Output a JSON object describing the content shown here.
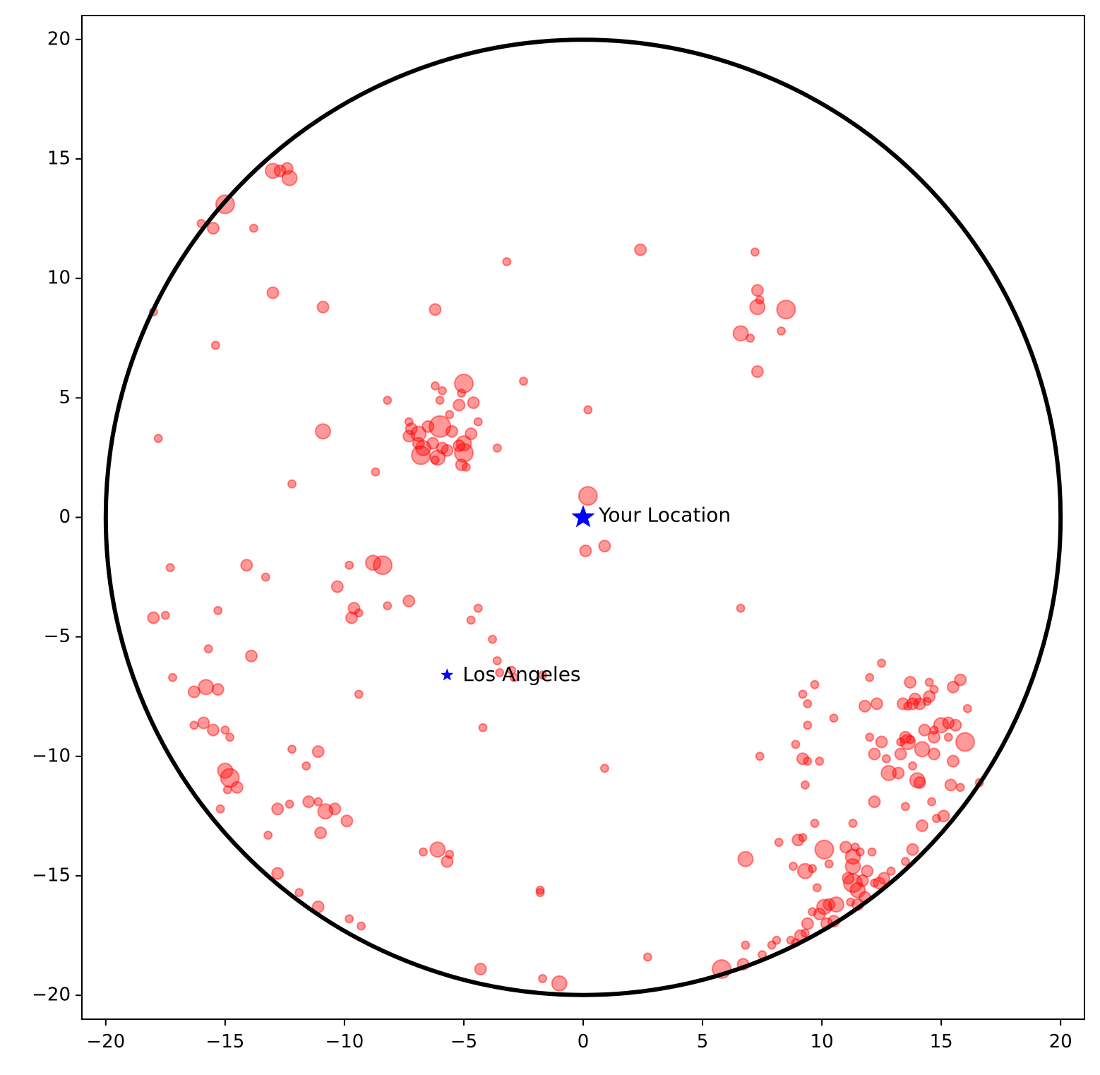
{
  "chart_data": {
    "type": "scatter",
    "title": "",
    "xlabel": "",
    "ylabel": "",
    "xlim": [
      -21,
      21
    ],
    "ylim": [
      -21,
      21
    ],
    "xticks": [
      -20,
      -15,
      -10,
      -5,
      0,
      5,
      10,
      15,
      20
    ],
    "yticks": [
      -20,
      -15,
      -10,
      -5,
      0,
      5,
      10,
      15,
      20
    ],
    "xtick_labels": [
      "−20",
      "−15",
      "−10",
      "−5",
      "0",
      "5",
      "10",
      "15",
      "20"
    ],
    "ytick_labels": [
      "−20",
      "−15",
      "−10",
      "−5",
      "0",
      "5",
      "10",
      "15",
      "20"
    ],
    "grid": false,
    "circle": {
      "center": [
        0,
        0
      ],
      "radius": 20,
      "color": "#000000"
    },
    "points_color": "#ff0000",
    "points_alpha": 0.4,
    "points": [
      [
        -15,
        13.1,
        4
      ],
      [
        -13,
        14.5,
        3
      ],
      [
        -12.4,
        14.6,
        2
      ],
      [
        -12.3,
        14.2,
        3
      ],
      [
        -12.7,
        14.5,
        2
      ],
      [
        -15.5,
        12.1,
        2
      ],
      [
        -16,
        12.3,
        1
      ],
      [
        -13.8,
        12.1,
        1
      ],
      [
        -18,
        8.6,
        1
      ],
      [
        -13,
        9.4,
        2
      ],
      [
        -10.9,
        8.8,
        2
      ],
      [
        -15.4,
        7.2,
        1
      ],
      [
        -17.8,
        3.3,
        1
      ],
      [
        -10.9,
        3.6,
        3
      ],
      [
        -12.2,
        1.4,
        1
      ],
      [
        -8.7,
        1.9,
        1
      ],
      [
        -8.2,
        4.9,
        1
      ],
      [
        -6.2,
        8.7,
        2
      ],
      [
        -3.2,
        10.7,
        1
      ],
      [
        2.4,
        11.2,
        2
      ],
      [
        7.2,
        11.1,
        1
      ],
      [
        7.3,
        9.5,
        2
      ],
      [
        7.4,
        9.1,
        1
      ],
      [
        7.3,
        8.8,
        3
      ],
      [
        8.5,
        8.7,
        4
      ],
      [
        8.3,
        7.8,
        1
      ],
      [
        6.6,
        7.7,
        3
      ],
      [
        7,
        7.5,
        1
      ],
      [
        7.3,
        6.1,
        2
      ],
      [
        0.2,
        4.5,
        1
      ],
      [
        -2.5,
        5.7,
        1
      ],
      [
        -6.2,
        5.5,
        1
      ],
      [
        -5.9,
        5.3,
        1
      ],
      [
        -5,
        5.6,
        4
      ],
      [
        -5.1,
        5.2,
        1
      ],
      [
        -6,
        4.9,
        1
      ],
      [
        -5.6,
        4.3,
        1
      ],
      [
        -5.2,
        4.7,
        2
      ],
      [
        -4.6,
        4.8,
        2
      ],
      [
        -4.4,
        4,
        1
      ],
      [
        -4.7,
        3.5,
        2
      ],
      [
        -7.3,
        4,
        1
      ],
      [
        -7.2,
        3.7,
        2
      ],
      [
        -7.3,
        3.4,
        2
      ],
      [
        -6.9,
        3.5,
        3
      ],
      [
        -6.5,
        3.8,
        2
      ],
      [
        -6,
        3.8,
        5
      ],
      [
        -5.5,
        3.6,
        2
      ],
      [
        -6.9,
        3.1,
        2
      ],
      [
        -6.7,
        2.9,
        3
      ],
      [
        -6.3,
        3.1,
        2
      ],
      [
        -5.9,
        2.9,
        2
      ],
      [
        -6.1,
        2.5,
        3
      ],
      [
        -6.8,
        2.6,
        4
      ],
      [
        -5.7,
        2.8,
        2
      ],
      [
        -5.2,
        3,
        2
      ],
      [
        -5,
        3.1,
        3
      ],
      [
        -5,
        2.7,
        4
      ],
      [
        -5.1,
        2.2,
        2
      ],
      [
        -4.9,
        2.1,
        1
      ],
      [
        -6.2,
        2.4,
        1
      ],
      [
        -3.6,
        2.9,
        1
      ],
      [
        0.2,
        0.9,
        4
      ],
      [
        -14.1,
        -2,
        2
      ],
      [
        -13.3,
        -2.5,
        1
      ],
      [
        -17.3,
        -2.1,
        1
      ],
      [
        -9.8,
        -2,
        1
      ],
      [
        -8.8,
        -1.9,
        3
      ],
      [
        -8.4,
        -2,
        4
      ],
      [
        -10.3,
        -2.9,
        2
      ],
      [
        -9.6,
        -3.8,
        2
      ],
      [
        -9.7,
        -4.2,
        2
      ],
      [
        -9.4,
        -4,
        1
      ],
      [
        -8.2,
        -3.7,
        1
      ],
      [
        -7.3,
        -3.5,
        2
      ],
      [
        0.1,
        -1.4,
        2
      ],
      [
        0.9,
        -1.2,
        2
      ],
      [
        -18,
        -4.2,
        2
      ],
      [
        -17.5,
        -4.1,
        1
      ],
      [
        -15.3,
        -3.9,
        1
      ],
      [
        -13.9,
        -5.8,
        2
      ],
      [
        -15.7,
        -5.5,
        1
      ],
      [
        -17.2,
        -6.7,
        1
      ],
      [
        -15.8,
        -7.1,
        3
      ],
      [
        -15.3,
        -7.2,
        2
      ],
      [
        -16.3,
        -7.3,
        2
      ],
      [
        -16.3,
        -8.7,
        1
      ],
      [
        -15.9,
        -8.6,
        2
      ],
      [
        -15.5,
        -8.9,
        2
      ],
      [
        -15,
        -8.9,
        1
      ],
      [
        -14.8,
        -9.2,
        1
      ],
      [
        -9.4,
        -7.4,
        1
      ],
      [
        -4.4,
        -3.8,
        1
      ],
      [
        -4.7,
        -4.3,
        1
      ],
      [
        -3.8,
        -5.1,
        1
      ],
      [
        -3.6,
        -6,
        1
      ],
      [
        -3.5,
        -6.5,
        1
      ],
      [
        -3,
        -6.4,
        1
      ],
      [
        -2.9,
        -6.7,
        1
      ],
      [
        -1.7,
        -6.6,
        1
      ],
      [
        -4.2,
        -8.8,
        1
      ],
      [
        0.9,
        -10.5,
        1
      ],
      [
        6.6,
        -3.8,
        1
      ],
      [
        -12.2,
        -9.7,
        1
      ],
      [
        -11.1,
        -9.8,
        2
      ],
      [
        -11.6,
        -10.4,
        1
      ],
      [
        -15,
        -10.6,
        3
      ],
      [
        -14.8,
        -10.9,
        4
      ],
      [
        -14.9,
        -11.4,
        1
      ],
      [
        -14.5,
        -11.3,
        2
      ],
      [
        -15.2,
        -12.2,
        1
      ],
      [
        -12.8,
        -12.2,
        2
      ],
      [
        -12.3,
        -12,
        1
      ],
      [
        -11.5,
        -11.9,
        2
      ],
      [
        -11.1,
        -11.9,
        1
      ],
      [
        -10.8,
        -12.3,
        3
      ],
      [
        -10.4,
        -12.2,
        2
      ],
      [
        -9.9,
        -12.7,
        2
      ],
      [
        -13.2,
        -13.3,
        1
      ],
      [
        -11,
        -13.2,
        2
      ],
      [
        -12.8,
        -14.9,
        2
      ],
      [
        -11.9,
        -15.7,
        1
      ],
      [
        -11.1,
        -16.3,
        2
      ],
      [
        -9.8,
        -16.8,
        1
      ],
      [
        -9.3,
        -17.1,
        1
      ],
      [
        -6.1,
        -13.9,
        3
      ],
      [
        -6.7,
        -14,
        1
      ],
      [
        -5.6,
        -14.1,
        1
      ],
      [
        -5.7,
        -14.4,
        2
      ],
      [
        -4.3,
        -18.9,
        2
      ],
      [
        -1.8,
        -15.6,
        1
      ],
      [
        -1.8,
        -15.7,
        1
      ],
      [
        -1.7,
        -19.3,
        1
      ],
      [
        -1,
        -19.5,
        3
      ],
      [
        2.7,
        -18.4,
        1
      ],
      [
        5.8,
        -18.9,
        4
      ],
      [
        6.7,
        -18.7,
        2
      ],
      [
        6.8,
        -17.9,
        1
      ],
      [
        6.8,
        -14.3,
        3
      ],
      [
        7.5,
        -18.3,
        1
      ],
      [
        7.9,
        -17.9,
        1
      ],
      [
        8.2,
        -13.6,
        1
      ],
      [
        7.4,
        -10,
        1
      ],
      [
        8.9,
        -9.5,
        1
      ],
      [
        9.2,
        -10.1,
        2
      ],
      [
        9.4,
        -10.2,
        1
      ],
      [
        9.9,
        -10.2,
        1
      ],
      [
        9.3,
        -11.2,
        1
      ],
      [
        9.7,
        -12.8,
        1
      ],
      [
        9.3,
        -14.8,
        3
      ],
      [
        9.6,
        -14.7,
        1
      ],
      [
        9.8,
        -15.5,
        1
      ],
      [
        10.1,
        -13.9,
        4
      ],
      [
        10.3,
        -14.5,
        1
      ],
      [
        8.8,
        -14.6,
        1
      ],
      [
        9.2,
        -13.4,
        1
      ],
      [
        9,
        -13.5,
        2
      ],
      [
        9.4,
        -8.7,
        1
      ],
      [
        9.4,
        -7.8,
        1
      ],
      [
        9.2,
        -7.4,
        1
      ],
      [
        9.7,
        -7,
        1
      ],
      [
        10.5,
        -8.4,
        1
      ],
      [
        11,
        -13.8,
        2
      ],
      [
        11.3,
        -14.2,
        3
      ],
      [
        11.3,
        -14.6,
        3
      ],
      [
        11.4,
        -13.8,
        1
      ],
      [
        11.6,
        -14,
        1
      ],
      [
        11.3,
        -12.8,
        1
      ],
      [
        11.1,
        -15.1,
        2
      ],
      [
        11.3,
        -15.3,
        4
      ],
      [
        11.5,
        -15.6,
        3
      ],
      [
        11.7,
        -15.2,
        2
      ],
      [
        11.8,
        -15.9,
        2
      ],
      [
        11.5,
        -16.2,
        2
      ],
      [
        11.2,
        -16.1,
        1
      ],
      [
        11.9,
        -14.8,
        2
      ],
      [
        12.1,
        -14,
        1
      ],
      [
        12.2,
        -11.9,
        2
      ],
      [
        12.2,
        -9.9,
        2
      ],
      [
        12,
        -9.2,
        1
      ],
      [
        11.8,
        -7.9,
        2
      ],
      [
        12,
        -6.7,
        1
      ],
      [
        12.3,
        -7.8,
        2
      ],
      [
        12.5,
        -6.1,
        1
      ],
      [
        12.5,
        -9.4,
        2
      ],
      [
        12.8,
        -10.7,
        3
      ],
      [
        13.2,
        -10.7,
        2
      ],
      [
        13.3,
        -9.4,
        1
      ],
      [
        13.3,
        -9.9,
        2
      ],
      [
        13.5,
        -9.2,
        2
      ],
      [
        13.6,
        -9.4,
        3
      ],
      [
        13.7,
        -9.3,
        1
      ],
      [
        13.4,
        -7.8,
        2
      ],
      [
        13.6,
        -7.9,
        1
      ],
      [
        13.7,
        -6.9,
        2
      ],
      [
        13.8,
        -7.8,
        2
      ],
      [
        13.9,
        -7.6,
        2
      ],
      [
        14.1,
        -7.8,
        2
      ],
      [
        14.4,
        -7.7,
        1
      ],
      [
        14.5,
        -7.5,
        2
      ],
      [
        14.5,
        -6.9,
        1
      ],
      [
        14.7,
        -7.2,
        1
      ],
      [
        14.3,
        -8.9,
        2
      ],
      [
        14.7,
        -8.9,
        1
      ],
      [
        15,
        -8.7,
        3
      ],
      [
        15.3,
        -8.6,
        2
      ],
      [
        15.3,
        -9.2,
        1
      ],
      [
        15.6,
        -8.7,
        2
      ],
      [
        15.5,
        -7.1,
        2
      ],
      [
        15.8,
        -6.8,
        2
      ],
      [
        16.1,
        -8,
        1
      ],
      [
        16,
        -9.4,
        4
      ],
      [
        15.5,
        -10.2,
        2
      ],
      [
        15.4,
        -11.2,
        2
      ],
      [
        15.8,
        -11.3,
        1
      ],
      [
        14.7,
        -9.9,
        2
      ],
      [
        14.7,
        -9.2,
        2
      ],
      [
        14.2,
        -9.7,
        3
      ],
      [
        13.8,
        -10.4,
        1
      ],
      [
        14,
        -11,
        3
      ],
      [
        14.1,
        -11.1,
        2
      ],
      [
        14.2,
        -12.9,
        2
      ],
      [
        14.6,
        -11.9,
        1
      ],
      [
        14.8,
        -12.6,
        1
      ],
      [
        15.1,
        -12.5,
        2
      ],
      [
        16.6,
        -11.1,
        1
      ],
      [
        13.5,
        -12.1,
        1
      ],
      [
        13.5,
        -14.4,
        1
      ],
      [
        13.8,
        -13.9,
        2
      ],
      [
        12.2,
        -15.3,
        1
      ],
      [
        12.6,
        -15.1,
        2
      ],
      [
        12.4,
        -15.3,
        2
      ],
      [
        10.1,
        -16.3,
        3
      ],
      [
        10.3,
        -16.2,
        2
      ],
      [
        10.6,
        -16.2,
        3
      ],
      [
        10.5,
        -16.9,
        2
      ],
      [
        10.2,
        -17,
        2
      ],
      [
        9.9,
        -16.6,
        2
      ],
      [
        9.6,
        -16.5,
        1
      ],
      [
        9.4,
        -17,
        2
      ],
      [
        9.3,
        -17.4,
        1
      ],
      [
        9.1,
        -17.5,
        2
      ],
      [
        8.9,
        -17.8,
        1
      ],
      [
        8.7,
        -17.7,
        1
      ],
      [
        8.1,
        -17.7,
        1
      ],
      [
        12.9,
        -14.8,
        1
      ],
      [
        12.7,
        -10.1,
        1
      ]
    ],
    "markers": [
      {
        "label": "Your Location",
        "x": 0,
        "y": 0,
        "marker": "star",
        "color": "#0000ff",
        "size": "large"
      },
      {
        "label": "Los Angeles",
        "x": -5.7,
        "y": -6.6,
        "marker": "star",
        "color": "#0000ff",
        "size": "small"
      }
    ]
  }
}
